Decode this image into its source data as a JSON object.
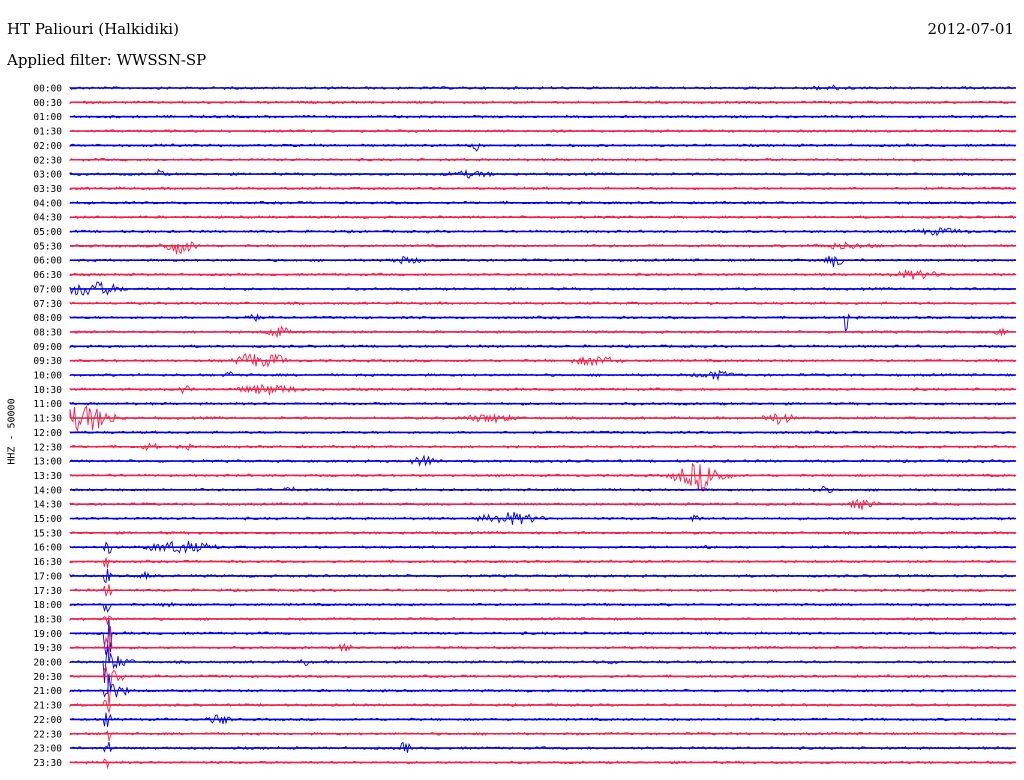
{
  "header": {
    "station_title": "HT Paliouri (Halkidiki)",
    "date": "2012-07-01",
    "filter_label": "Applied filter: WWSSN-SP"
  },
  "channel_label": "HHZ - 50000",
  "colors": {
    "even_trace": "#0000e6",
    "odd_trace": "#f0204a"
  },
  "traces": [
    {
      "label": "00:00"
    },
    {
      "label": "00:30"
    },
    {
      "label": "01:00"
    },
    {
      "label": "01:30"
    },
    {
      "label": "02:00"
    },
    {
      "label": "02:30"
    },
    {
      "label": "03:00"
    },
    {
      "label": "03:30"
    },
    {
      "label": "04:00"
    },
    {
      "label": "04:30"
    },
    {
      "label": "05:00"
    },
    {
      "label": "05:30"
    },
    {
      "label": "06:00"
    },
    {
      "label": "06:30"
    },
    {
      "label": "07:00"
    },
    {
      "label": "07:30"
    },
    {
      "label": "08:00"
    },
    {
      "label": "08:30"
    },
    {
      "label": "09:00"
    },
    {
      "label": "09:30"
    },
    {
      "label": "10:00"
    },
    {
      "label": "10:30"
    },
    {
      "label": "11:00"
    },
    {
      "label": "11:30"
    },
    {
      "label": "12:00"
    },
    {
      "label": "12:30"
    },
    {
      "label": "13:00"
    },
    {
      "label": "13:30"
    },
    {
      "label": "14:00"
    },
    {
      "label": "14:30"
    },
    {
      "label": "15:00"
    },
    {
      "label": "15:30"
    },
    {
      "label": "16:00"
    },
    {
      "label": "16:30"
    },
    {
      "label": "17:00"
    },
    {
      "label": "17:30"
    },
    {
      "label": "18:00"
    },
    {
      "label": "18:30"
    },
    {
      "label": "19:00"
    },
    {
      "label": "19:30"
    },
    {
      "label": "20:00"
    },
    {
      "label": "20:30"
    },
    {
      "label": "21:00"
    },
    {
      "label": "21:30"
    },
    {
      "label": "22:00"
    },
    {
      "label": "22:30"
    },
    {
      "label": "23:00"
    },
    {
      "label": "23:30"
    }
  ]
}
